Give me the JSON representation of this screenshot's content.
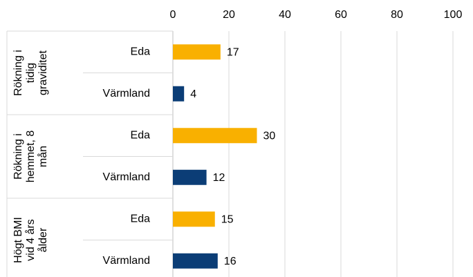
{
  "chart_data": {
    "type": "bar",
    "orientation": "horizontal",
    "groups": [
      {
        "label": [
          "Rökning i",
          "tidig",
          "graviditet"
        ],
        "categories": [
          "Eda",
          "Värmland"
        ],
        "values": [
          17,
          4
        ]
      },
      {
        "label": [
          "Rökning i",
          "hemmet, 8",
          "mån"
        ],
        "categories": [
          "Eda",
          "Värmland"
        ],
        "values": [
          30,
          12
        ]
      },
      {
        "label": [
          "Högt BMI",
          "vid 4 års",
          "ålder"
        ],
        "categories": [
          "Eda",
          "Värmland"
        ],
        "values": [
          15,
          16
        ]
      }
    ],
    "colors": [
      "#f9b000",
      "#0b3d76"
    ],
    "xlim": [
      0,
      100
    ],
    "xticks": [
      0,
      20,
      40,
      60,
      80,
      100
    ],
    "grid": true
  }
}
